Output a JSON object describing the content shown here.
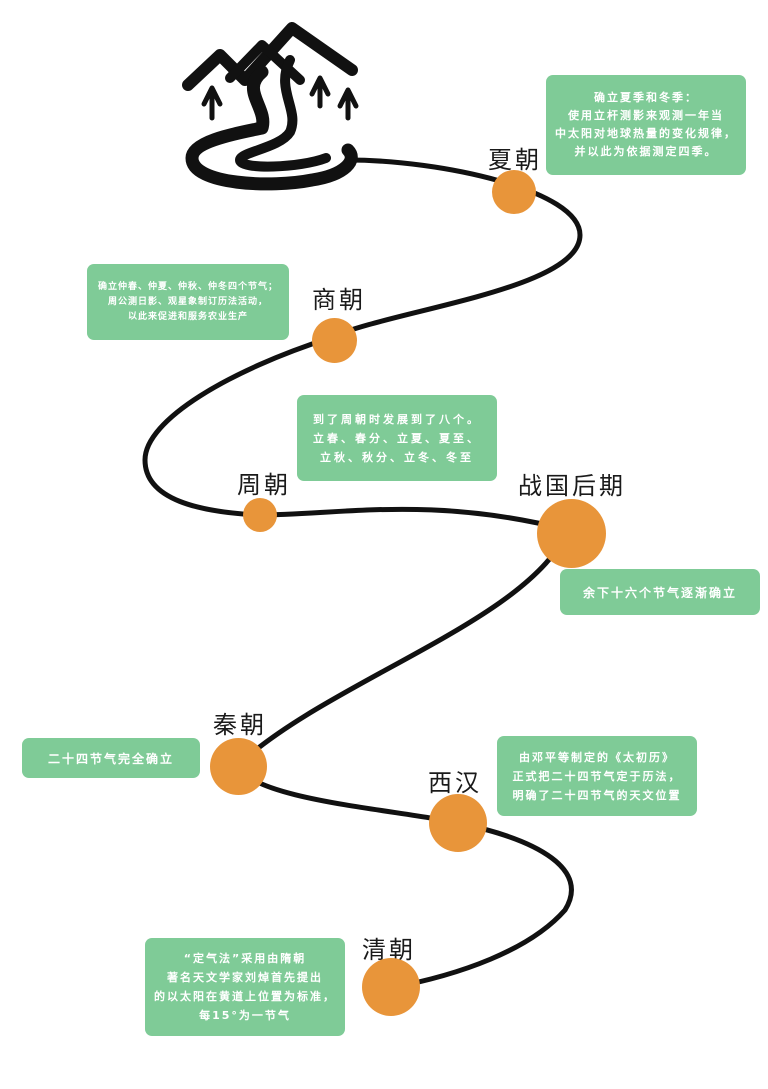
{
  "icon": "mountain-road-icon",
  "colors": {
    "node": "#e8953a",
    "box": "#7fcb97",
    "road": "#111111"
  },
  "eras": [
    {
      "id": "xia",
      "label": "夏朝",
      "note": "确立夏季和冬季：\n使用立杆测影来观测一年当\n中太阳对地球热量的变化规律，\n并以此为依据测定四季。"
    },
    {
      "id": "shang",
      "label": "商朝",
      "note": "确立仲春、仲夏、仲秋、仲冬四个节气；\n周公测日影、观星象制订历法活动，\n以此来促进和服务农业生产"
    },
    {
      "id": "zhou",
      "label": "周朝",
      "note": "到了周朝时发展到了八个。\n立春、春分、立夏、夏至、\n立秋、秋分、立冬、冬至"
    },
    {
      "id": "zhanguo",
      "label": "战国后期",
      "note": "余下十六个节气逐渐确立"
    },
    {
      "id": "qin",
      "label": "秦朝",
      "note": "二十四节气完全确立"
    },
    {
      "id": "xihan",
      "label": "西汉",
      "note": "由邓平等制定的《太初历》\n正式把二十四节气定于历法，\n明确了二十四节气的天文位置"
    },
    {
      "id": "qing",
      "label": "清朝",
      "note": "“定气法”采用由隋朝\n著名天文学家刘焯首先提出\n的以太阳在黄道上位置为标准，\n每15°为一节气"
    }
  ]
}
